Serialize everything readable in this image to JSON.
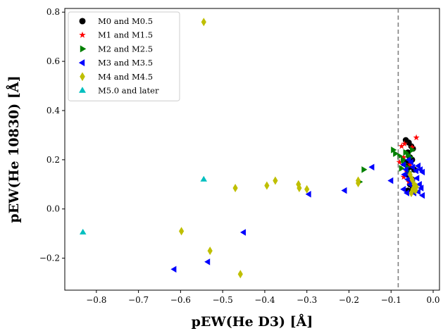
{
  "chart_data": {
    "type": "scatter",
    "xlabel": "pEW(He D3) [Å]",
    "ylabel": "pEW(He 10830) [Å]",
    "xlim": [
      -0.875,
      0.015
    ],
    "ylim": [
      -0.33,
      0.815
    ],
    "xticks": [
      -0.8,
      -0.7,
      -0.6,
      -0.5,
      -0.4,
      -0.3,
      -0.2,
      -0.1,
      0.0
    ],
    "xtick_labels": [
      "−0.8",
      "−0.7",
      "−0.6",
      "−0.5",
      "−0.4",
      "−0.3",
      "−0.2",
      "−0.1",
      "0.0"
    ],
    "yticks": [
      -0.2,
      0.0,
      0.2,
      0.4,
      0.6,
      0.8
    ],
    "ytick_labels": [
      "−0.2",
      "0.0",
      "0.2",
      "0.4",
      "0.6",
      "0.8"
    ],
    "grid": false,
    "legend_position": "top-left",
    "vline": {
      "x": -0.083,
      "style": "dashed",
      "color": "#808080"
    },
    "series": [
      {
        "name": "M0 and M0.5",
        "marker": "circle",
        "color": "#000000",
        "points": [
          [
            -0.065,
            0.28
          ],
          [
            -0.058,
            0.27
          ],
          [
            -0.052,
            0.255
          ],
          [
            -0.048,
            0.245
          ],
          [
            -0.06,
            0.23
          ],
          [
            -0.055,
            0.21
          ],
          [
            -0.05,
            0.2
          ],
          [
            -0.062,
            0.19
          ],
          [
            -0.057,
            0.17
          ],
          [
            -0.045,
            0.16
          ],
          [
            -0.06,
            0.14
          ],
          [
            -0.05,
            0.12
          ],
          [
            -0.055,
            0.1
          ],
          [
            -0.048,
            0.085
          ],
          [
            -0.06,
            0.075
          ],
          [
            -0.052,
            0.07
          ]
        ]
      },
      {
        "name": "M1 and M1.5",
        "marker": "star",
        "color": "#ff0000",
        "points": [
          [
            -0.04,
            0.29
          ],
          [
            -0.068,
            0.265
          ],
          [
            -0.075,
            0.255
          ],
          [
            -0.05,
            0.25
          ],
          [
            -0.07,
            0.21
          ],
          [
            -0.08,
            0.19
          ],
          [
            -0.055,
            0.18
          ],
          [
            -0.062,
            0.15
          ],
          [
            -0.07,
            0.13
          ],
          [
            -0.058,
            0.11
          ]
        ]
      },
      {
        "name": "M2 and M2.5",
        "marker": "triangle-right",
        "color": "#008000",
        "points": [
          [
            -0.165,
            0.16
          ],
          [
            -0.175,
            0.11
          ],
          [
            -0.095,
            0.24
          ],
          [
            -0.09,
            0.225
          ],
          [
            -0.08,
            0.215
          ],
          [
            -0.072,
            0.2
          ],
          [
            -0.066,
            0.23
          ],
          [
            -0.06,
            0.22
          ],
          [
            -0.055,
            0.21
          ],
          [
            -0.05,
            0.24
          ],
          [
            -0.07,
            0.185
          ],
          [
            -0.062,
            0.17
          ],
          [
            -0.076,
            0.165
          ],
          [
            -0.058,
            0.15
          ]
        ]
      },
      {
        "name": "M3 and M3.5",
        "marker": "triangle-left",
        "color": "#0000ff",
        "points": [
          [
            -0.615,
            -0.245
          ],
          [
            -0.535,
            -0.215
          ],
          [
            -0.45,
            -0.095
          ],
          [
            -0.295,
            0.06
          ],
          [
            -0.21,
            0.075
          ],
          [
            -0.145,
            0.17
          ],
          [
            -0.1,
            0.115
          ],
          [
            -0.07,
            0.18
          ],
          [
            -0.064,
            0.16
          ],
          [
            -0.058,
            0.14
          ],
          [
            -0.052,
            0.19
          ],
          [
            -0.048,
            0.17
          ],
          [
            -0.04,
            0.155
          ],
          [
            -0.035,
            0.175
          ],
          [
            -0.03,
            0.16
          ],
          [
            -0.025,
            0.15
          ],
          [
            -0.06,
            0.12
          ],
          [
            -0.055,
            0.1
          ],
          [
            -0.048,
            0.11
          ],
          [
            -0.044,
            0.09
          ],
          [
            -0.038,
            0.125
          ],
          [
            -0.032,
            0.1
          ],
          [
            -0.028,
            0.085
          ],
          [
            -0.07,
            0.08
          ],
          [
            -0.062,
            0.065
          ],
          [
            -0.045,
            0.065
          ],
          [
            -0.035,
            0.07
          ],
          [
            -0.025,
            0.055
          ],
          [
            -0.068,
            0.14
          ],
          [
            -0.058,
            0.2
          ]
        ]
      },
      {
        "name": "M4 and M4.5",
        "marker": "thin-diamond",
        "color": "#bfbf00",
        "points": [
          [
            -0.545,
            0.76
          ],
          [
            -0.47,
            0.085
          ],
          [
            -0.395,
            0.095
          ],
          [
            -0.375,
            0.115
          ],
          [
            -0.32,
            0.1
          ],
          [
            -0.318,
            0.085
          ],
          [
            -0.3,
            0.08
          ],
          [
            -0.178,
            0.115
          ],
          [
            -0.178,
            0.105
          ],
          [
            -0.598,
            -0.09
          ],
          [
            -0.53,
            -0.17
          ],
          [
            -0.458,
            -0.265
          ],
          [
            -0.055,
            0.14
          ],
          [
            -0.05,
            0.12
          ],
          [
            -0.045,
            0.1
          ],
          [
            -0.04,
            0.09
          ],
          [
            -0.048,
            0.08
          ],
          [
            -0.052,
            0.065
          ],
          [
            -0.042,
            0.075
          ]
        ]
      },
      {
        "name": "M5.0 and later",
        "marker": "triangle-up",
        "color": "#00bfbf",
        "points": [
          [
            -0.832,
            -0.095
          ],
          [
            -0.545,
            0.12
          ]
        ]
      }
    ]
  }
}
